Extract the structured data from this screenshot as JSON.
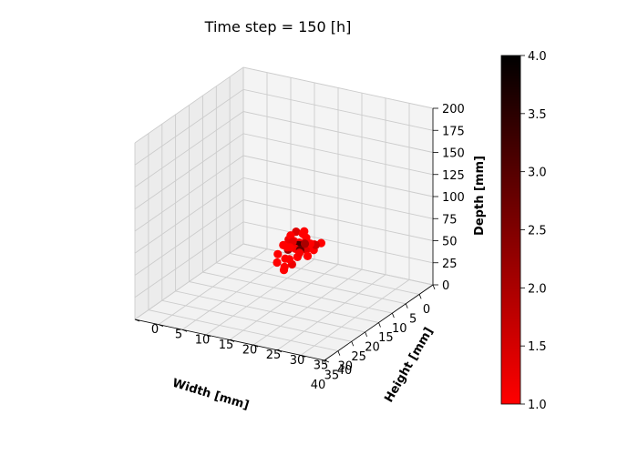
{
  "chart_data": {
    "type": "scatter",
    "projection": "3d",
    "title": "Time step = 150 [h]",
    "xlabel": "Width [mm]",
    "ylabel": "Height [mm]",
    "zlabel": "Depth [mm]",
    "xlim": [
      0,
      40
    ],
    "ylim": [
      0,
      40
    ],
    "zlim": [
      0,
      200
    ],
    "xticks": [
      "0",
      "5",
      "10",
      "15",
      "20",
      "25",
      "30",
      "35",
      "40"
    ],
    "yticks": [
      "0",
      "5",
      "10",
      "15",
      "20",
      "25",
      "30",
      "35",
      "40"
    ],
    "zticks": [
      "0",
      "25",
      "50",
      "75",
      "100",
      "125",
      "150",
      "175",
      "200"
    ],
    "grid": true,
    "colorbar": {
      "range": [
        1.0,
        4.0
      ],
      "ticks": [
        "1.0",
        "1.5",
        "2.0",
        "2.5",
        "3.0",
        "3.5",
        "4.0"
      ],
      "colormap": [
        "#ff0000",
        "#000000"
      ]
    },
    "points": [
      {
        "x": 15,
        "y": 22,
        "z": 52,
        "c": 1.0
      },
      {
        "x": 16,
        "y": 24,
        "z": 55,
        "c": 1.0
      },
      {
        "x": 17,
        "y": 22,
        "z": 58,
        "c": 1.2
      },
      {
        "x": 18,
        "y": 23,
        "z": 60,
        "c": 1.0
      },
      {
        "x": 19,
        "y": 24,
        "z": 62,
        "c": 1.3
      },
      {
        "x": 20,
        "y": 22,
        "z": 64,
        "c": 1.0
      },
      {
        "x": 21,
        "y": 23,
        "z": 66,
        "c": 1.1
      },
      {
        "x": 22,
        "y": 24,
        "z": 60,
        "c": 1.0
      },
      {
        "x": 23,
        "y": 22,
        "z": 58,
        "c": 1.0
      },
      {
        "x": 24,
        "y": 24,
        "z": 56,
        "c": 1.2
      },
      {
        "x": 25,
        "y": 23,
        "z": 54,
        "c": 1.0
      },
      {
        "x": 16,
        "y": 21,
        "z": 60,
        "c": 1.0
      },
      {
        "x": 17,
        "y": 25,
        "z": 64,
        "c": 1.5
      },
      {
        "x": 18,
        "y": 21,
        "z": 66,
        "c": 1.0
      },
      {
        "x": 19,
        "y": 25,
        "z": 70,
        "c": 1.0
      },
      {
        "x": 20,
        "y": 21,
        "z": 72,
        "c": 1.2
      },
      {
        "x": 21,
        "y": 25,
        "z": 74,
        "c": 2.0
      },
      {
        "x": 22,
        "y": 21,
        "z": 70,
        "c": 1.0
      },
      {
        "x": 23,
        "y": 25,
        "z": 68,
        "c": 1.1
      },
      {
        "x": 24,
        "y": 21,
        "z": 64,
        "c": 1.0
      },
      {
        "x": 18,
        "y": 23,
        "z": 78,
        "c": 1.0
      },
      {
        "x": 19,
        "y": 22,
        "z": 80,
        "c": 1.4
      },
      {
        "x": 20,
        "y": 24,
        "z": 82,
        "c": 1.0
      },
      {
        "x": 21,
        "y": 22,
        "z": 80,
        "c": 1.0
      },
      {
        "x": 22,
        "y": 23,
        "z": 76,
        "c": 1.3
      },
      {
        "x": 20,
        "y": 23,
        "z": 68,
        "c": 3.2
      },
      {
        "x": 21,
        "y": 24,
        "z": 66,
        "c": 2.8
      },
      {
        "x": 19,
        "y": 23,
        "z": 66,
        "c": 2.5
      },
      {
        "x": 22,
        "y": 22,
        "z": 66,
        "c": 2.2
      },
      {
        "x": 14,
        "y": 23,
        "z": 56,
        "c": 1.0
      },
      {
        "x": 26,
        "y": 22,
        "z": 60,
        "c": 1.0
      },
      {
        "x": 25,
        "y": 24,
        "z": 64,
        "c": 1.0
      },
      {
        "x": 15,
        "y": 25,
        "z": 62,
        "c": 1.0
      },
      {
        "x": 23,
        "y": 23,
        "z": 72,
        "c": 1.0
      },
      {
        "x": 17,
        "y": 23,
        "z": 70,
        "c": 1.0
      },
      {
        "x": 12,
        "y": 20,
        "z": 50,
        "c": 1.0
      },
      {
        "x": 27,
        "y": 24,
        "z": 56,
        "c": 1.0
      },
      {
        "x": 16,
        "y": 22,
        "z": 74,
        "c": 1.0
      },
      {
        "x": 24,
        "y": 23,
        "z": 74,
        "c": 1.0
      },
      {
        "x": 20,
        "y": 25,
        "z": 58,
        "c": 1.0
      }
    ]
  }
}
